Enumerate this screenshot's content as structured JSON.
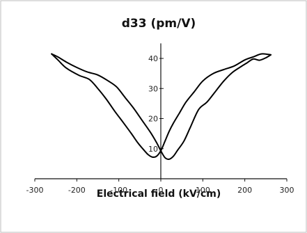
{
  "chart_data": {
    "type": "line",
    "title": "d33 (pm/V)",
    "xlabel": "Electrical field (kV/cm)",
    "ylabel": "",
    "xlim": [
      -300,
      300
    ],
    "ylim": [
      0,
      45
    ],
    "xticks": [
      -300,
      -200,
      -100,
      0,
      100,
      200,
      300
    ],
    "yticks": [
      10,
      20,
      30,
      40
    ],
    "grid": false,
    "legend": "none",
    "series": [
      {
        "color": "#000000",
        "x": [
          -260,
          -245,
          -225,
          -195,
          -170,
          -150,
          -130,
          -110,
          -90,
          -70,
          -55,
          -40,
          -30,
          -20,
          -10,
          0,
          10,
          20,
          30,
          45,
          60,
          80,
          100,
          125,
          150,
          175,
          200,
          220,
          240,
          262
        ],
        "y": [
          41.5,
          39.5,
          36.8,
          34.4,
          33.0,
          30.0,
          26.5,
          22.5,
          18.8,
          15.0,
          12.0,
          9.5,
          8.0,
          7.2,
          7.5,
          9.3,
          12.5,
          15.8,
          18.5,
          22.0,
          25.5,
          29.0,
          32.5,
          35.0,
          36.3,
          37.5,
          39.5,
          40.5,
          41.5,
          41.2
        ]
      },
      {
        "color": "#000000",
        "x": [
          262,
          250,
          235,
          220,
          205,
          190,
          170,
          150,
          130,
          110,
          90,
          70,
          55,
          40,
          30,
          20,
          10,
          0,
          -10,
          -25,
          -45,
          -65,
          -85,
          -105,
          -125,
          -150,
          -175,
          -200,
          -225,
          -245,
          -260
        ],
        "y": [
          41.2,
          40.2,
          39.4,
          39.8,
          38.5,
          37.2,
          35.3,
          32.5,
          29.0,
          25.5,
          23.0,
          17.0,
          12.5,
          9.5,
          7.5,
          6.5,
          7.0,
          9.3,
          12.0,
          15.5,
          19.5,
          23.5,
          27.0,
          30.5,
          32.5,
          34.5,
          35.5,
          37.0,
          38.8,
          40.5,
          41.5
        ]
      }
    ]
  }
}
